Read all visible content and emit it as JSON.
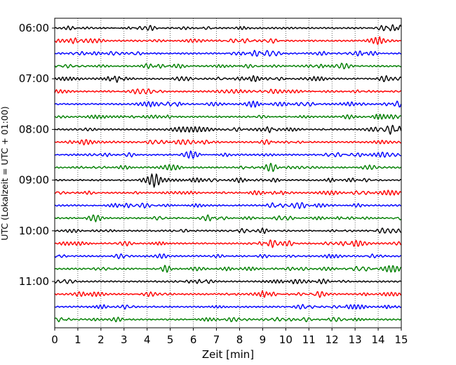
{
  "chart_data": {
    "type": "line",
    "title": "",
    "xlabel": "Zeit  [min]",
    "ylabel": "UTC (Lokalzeit = UTC + 01:00)",
    "xlim": [
      0,
      15
    ],
    "x_ticks": [
      0,
      1,
      2,
      3,
      4,
      5,
      6,
      7,
      8,
      9,
      10,
      11,
      12,
      13,
      14,
      15
    ],
    "x_tick_labels": [
      "0",
      "1",
      "2",
      "3",
      "4",
      "5",
      "6",
      "7",
      "8",
      "9",
      "10",
      "11",
      "12",
      "13",
      "14",
      "15"
    ],
    "y_tick_labels": [
      "06:00",
      "07:00",
      "08:00",
      "09:00",
      "10:00",
      "11:00"
    ],
    "grid": "vertical dotted lines at each minute",
    "trace_interval_minutes": 15,
    "trace_start": "06:00",
    "trace_count": 24,
    "trace_colors": [
      "#000000",
      "#ff0000",
      "#0000ff",
      "#007f00"
    ],
    "trace_labels": [
      "06:00",
      "06:15",
      "06:30",
      "06:45",
      "07:00",
      "07:15",
      "07:30",
      "07:45",
      "08:00",
      "08:15",
      "08:30",
      "08:45",
      "09:00",
      "09:15",
      "09:30",
      "09:45",
      "10:00",
      "10:15",
      "10:30",
      "10:45",
      "11:00",
      "11:15",
      "11:30",
      "11:45"
    ]
  }
}
